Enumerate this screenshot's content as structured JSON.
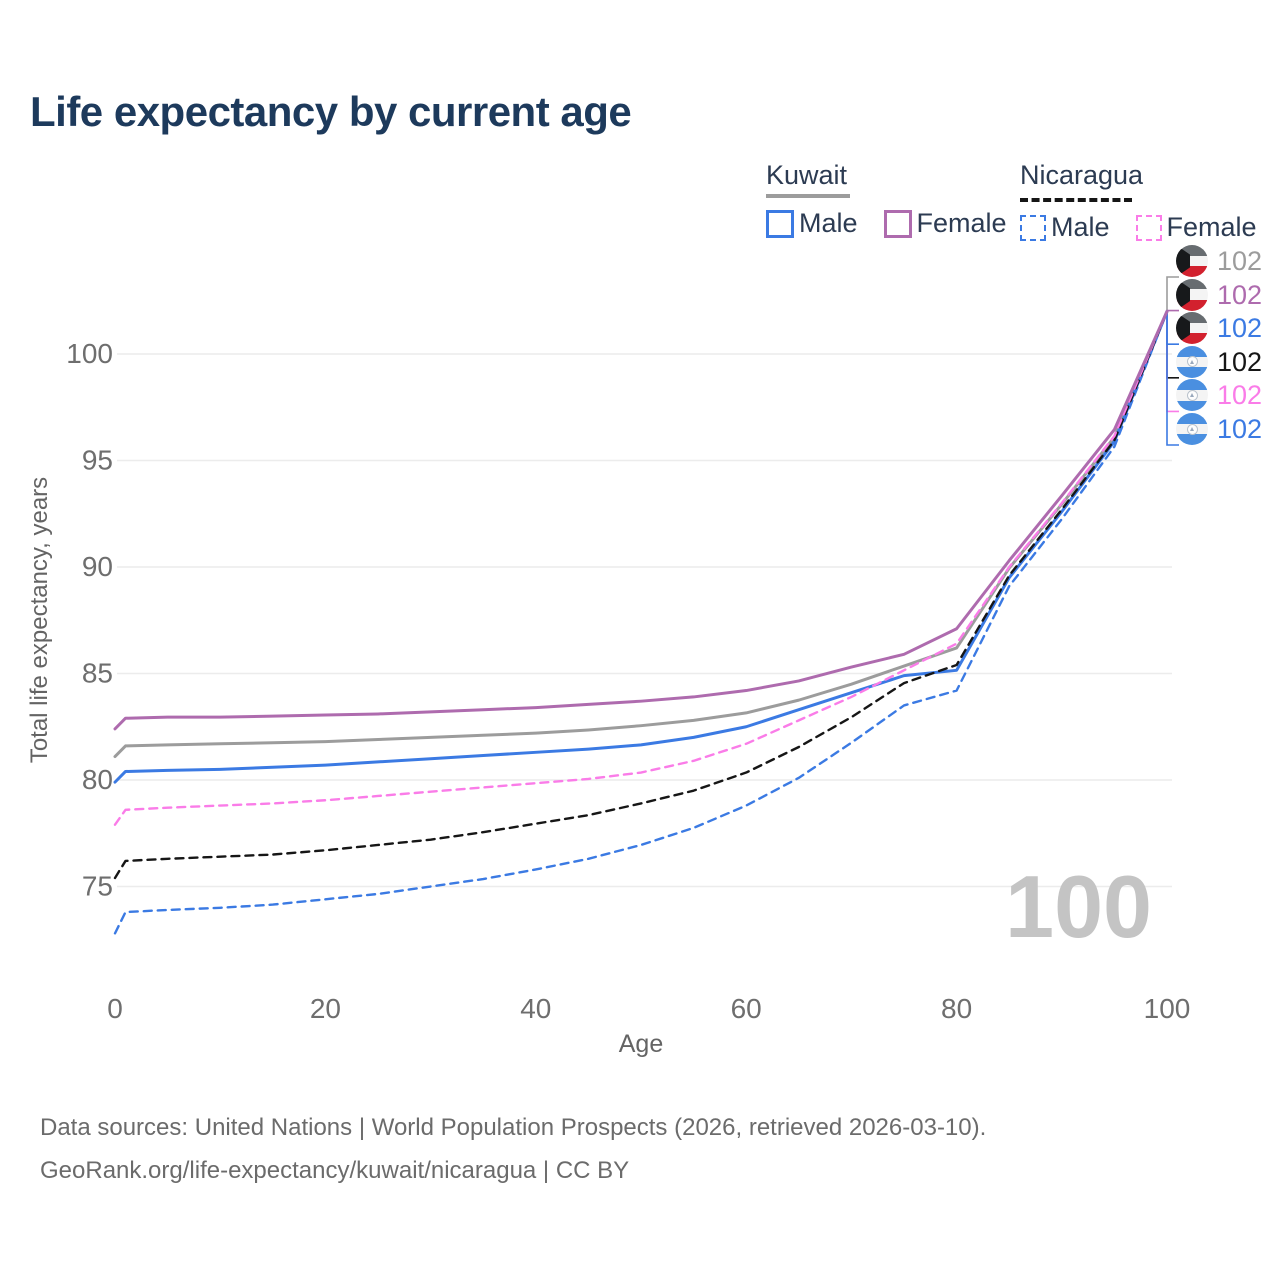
{
  "title": "Life expectancy by current age",
  "watermark": "100",
  "legend": {
    "groups": [
      {
        "country": "Kuwait",
        "line_style": "solid",
        "line_color": "#9c9c9c",
        "items": [
          {
            "label": "Male",
            "color": "#3b7ae3",
            "box_style": "solid"
          },
          {
            "label": "Female",
            "color": "#ae6bae",
            "box_style": "solid"
          }
        ]
      },
      {
        "country": "Nicaragua",
        "line_style": "dashed",
        "line_color": "#161616",
        "items": [
          {
            "label": "Male",
            "color": "#3b7ae3",
            "box_style": "dashed"
          },
          {
            "label": "Female",
            "color": "#fa7ce8",
            "box_style": "dashed"
          }
        ]
      }
    ]
  },
  "end_labels": [
    {
      "flag": "kuwait",
      "value": "102",
      "color": "#9c9c9c"
    },
    {
      "flag": "kuwait",
      "value": "102",
      "color": "#ae6bae"
    },
    {
      "flag": "kuwait",
      "value": "102",
      "color": "#3b7ae3"
    },
    {
      "flag": "nicaragua",
      "value": "102",
      "color": "#161616"
    },
    {
      "flag": "nicaragua",
      "value": "102",
      "color": "#fa7ce8"
    },
    {
      "flag": "nicaragua",
      "value": "102",
      "color": "#3b7ae3"
    }
  ],
  "footer": {
    "line1": "Data sources: United Nations | World Population Prospects (2026, retrieved 2026-03-10).",
    "line2": "GeoRank.org/life-expectancy/kuwait/nicaragua | CC BY"
  },
  "chart_data": {
    "type": "line",
    "title": "Life expectancy by current age",
    "xlabel": "Age",
    "ylabel": "Total life expectancy, years",
    "xlim": [
      0,
      100
    ],
    "ylim": [
      72,
      103
    ],
    "x_ticks": [
      0,
      20,
      40,
      60,
      80,
      100
    ],
    "y_ticks": [
      75,
      80,
      85,
      90,
      95,
      100
    ],
    "grid": "horizontal",
    "legend_position": "top-right",
    "end_value": 102,
    "x": [
      0,
      1,
      5,
      10,
      15,
      20,
      25,
      30,
      35,
      40,
      45,
      50,
      55,
      60,
      65,
      70,
      75,
      80,
      85,
      90,
      95,
      100
    ],
    "series": [
      {
        "name": "Kuwait All",
        "color": "#9c9c9c",
        "dash": "solid",
        "values": [
          81.1,
          81.6,
          81.65,
          81.7,
          81.75,
          81.8,
          81.9,
          82.0,
          82.1,
          82.2,
          82.35,
          82.55,
          82.8,
          83.15,
          83.75,
          84.5,
          85.35,
          86.2,
          89.95,
          92.95,
          96.1,
          102
        ]
      },
      {
        "name": "Kuwait Male",
        "color": "#3b7ae3",
        "dash": "solid",
        "values": [
          79.9,
          80.4,
          80.45,
          80.5,
          80.6,
          80.7,
          80.85,
          81.0,
          81.15,
          81.3,
          81.45,
          81.65,
          82.0,
          82.5,
          83.3,
          84.1,
          84.9,
          85.15,
          89.5,
          92.6,
          95.9,
          102
        ]
      },
      {
        "name": "Nicaragua Male",
        "color": "#3b7ae3",
        "dash": "dashed",
        "values": [
          72.8,
          73.8,
          73.9,
          74.0,
          74.15,
          74.4,
          74.65,
          75.0,
          75.35,
          75.8,
          76.3,
          76.95,
          77.75,
          78.8,
          80.1,
          81.75,
          83.5,
          84.2,
          89.1,
          92.25,
          95.65,
          102
        ]
      },
      {
        "name": "Nicaragua All",
        "color": "#161616",
        "dash": "dashed",
        "values": [
          75.4,
          76.2,
          76.3,
          76.4,
          76.5,
          76.7,
          76.95,
          77.2,
          77.55,
          77.95,
          78.35,
          78.9,
          79.5,
          80.35,
          81.55,
          82.95,
          84.55,
          85.4,
          89.6,
          92.7,
          95.95,
          102
        ]
      },
      {
        "name": "Nicaragua Female",
        "color": "#fa7ce8",
        "dash": "dashed",
        "values": [
          77.9,
          78.6,
          78.7,
          78.8,
          78.9,
          79.05,
          79.25,
          79.45,
          79.65,
          79.85,
          80.05,
          80.35,
          80.9,
          81.7,
          82.8,
          83.9,
          85.15,
          86.4,
          90.0,
          93.0,
          96.15,
          102
        ]
      },
      {
        "name": "Kuwait Female",
        "color": "#ae6bae",
        "dash": "solid",
        "values": [
          82.4,
          82.9,
          82.95,
          82.95,
          83.0,
          83.05,
          83.1,
          83.2,
          83.3,
          83.4,
          83.55,
          83.7,
          83.9,
          84.2,
          84.65,
          85.3,
          85.9,
          87.1,
          90.3,
          93.35,
          96.45,
          102
        ]
      }
    ]
  }
}
